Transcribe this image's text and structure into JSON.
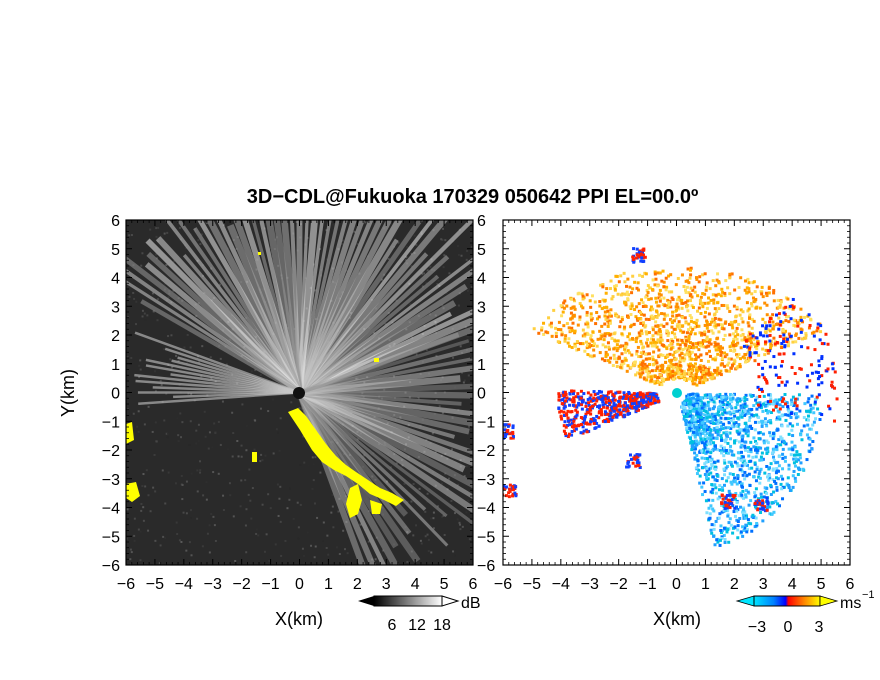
{
  "title": "3D−CDL@Fukuoka 170329 050642 PPI EL=00.0º",
  "chart_data": [
    {
      "type": "heatmap",
      "panel": "left",
      "xlabel": "X(km)",
      "ylabel": "Y(km)",
      "xlim": [
        -6,
        6
      ],
      "ylim": [
        -6,
        6
      ],
      "xticks": [
        "−6",
        "−5",
        "−4",
        "−3",
        "−2",
        "−1",
        "0",
        "1",
        "2",
        "3",
        "4",
        "5",
        "6"
      ],
      "yticks": [
        "6",
        "5",
        "4",
        "3",
        "2",
        "1",
        "0",
        "−1",
        "−2",
        "−3",
        "−4",
        "−5",
        "−6"
      ],
      "colorbar": {
        "unit": "dB",
        "ticks": [
          "6",
          "12",
          "18"
        ],
        "range": [
          0,
          20
        ],
        "colors": [
          "#000000",
          "#ffffff"
        ]
      },
      "background_color": "#2a2a2a",
      "highlight_color": "#ffff00"
    },
    {
      "type": "heatmap",
      "panel": "right",
      "xlabel": "X(km)",
      "xlim": [
        -6,
        6
      ],
      "ylim": [
        -6,
        6
      ],
      "xticks": [
        "−6",
        "−5",
        "−4",
        "−3",
        "−2",
        "−1",
        "0",
        "1",
        "2",
        "3",
        "4",
        "5",
        "6"
      ],
      "colorbar": {
        "unit": "ms",
        "unit_exp": "−1",
        "ticks": [
          "−3",
          "0",
          "3"
        ],
        "range": [
          -5,
          5
        ],
        "colors": [
          "#00e5ff",
          "#0080ff",
          "#0000ff",
          "#ff0000",
          "#ff8000",
          "#ffff00"
        ]
      },
      "radar_color": "#00d0d0"
    }
  ]
}
